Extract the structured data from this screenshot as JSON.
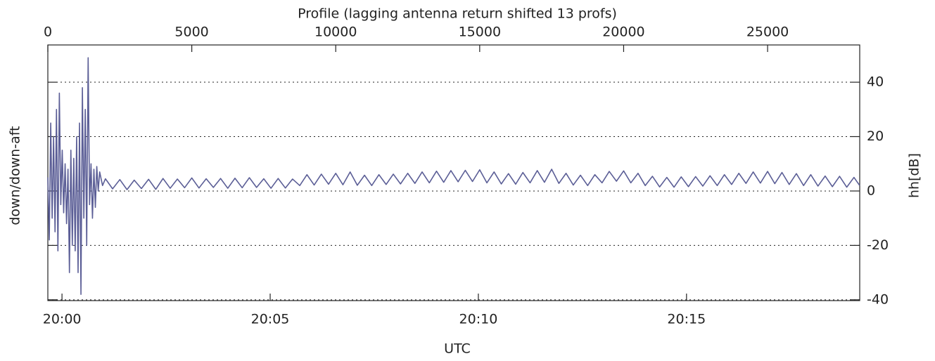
{
  "chart_data": {
    "type": "line",
    "title": "Profile (lagging antenna return shifted 13 profs)",
    "xlabel": "UTC",
    "ylabel": "hh[dB]",
    "ylabel_left": "down/down-aft",
    "xlim": [
      0,
      28200
    ],
    "xticks": [
      0,
      5000,
      10000,
      15000,
      20000,
      25000
    ],
    "x2lim": [
      -0.34,
      19.16
    ],
    "x2ticks": [
      {
        "value": 0,
        "label": "20:00"
      },
      {
        "value": 5,
        "label": "20:05"
      },
      {
        "value": 10,
        "label": "20:10"
      },
      {
        "value": 15,
        "label": "20:15"
      }
    ],
    "ylim": [
      -40.3,
      53.7
    ],
    "yticks": [
      -40,
      -20,
      0,
      20,
      40
    ],
    "grid": true,
    "x": [
      0,
      50,
      100,
      150,
      200,
      250,
      300,
      350,
      400,
      450,
      500,
      550,
      600,
      650,
      700,
      750,
      800,
      850,
      900,
      950,
      1000,
      1050,
      1100,
      1150,
      1200,
      1250,
      1300,
      1350,
      1400,
      1450,
      1500,
      1550,
      1600,
      1650,
      1700,
      1750,
      1800,
      1900,
      2000,
      2250,
      2500,
      2750,
      3000,
      3250,
      3500,
      3750,
      4000,
      4250,
      4500,
      4750,
      5000,
      5250,
      5500,
      5750,
      6000,
      6250,
      6500,
      6750,
      7000,
      7250,
      7500,
      7750,
      8000,
      8250,
      8500,
      8750,
      9000,
      9250,
      9500,
      9750,
      10000,
      10250,
      10500,
      10750,
      11000,
      11250,
      11500,
      11750,
      12000,
      12250,
      12500,
      12750,
      13000,
      13250,
      13500,
      13750,
      14000,
      14250,
      14500,
      14750,
      15000,
      15250,
      15500,
      15750,
      16000,
      16250,
      16500,
      16750,
      17000,
      17250,
      17500,
      17750,
      18000,
      18250,
      18500,
      18750,
      19000,
      19250,
      19500,
      19750,
      20000,
      20250,
      20500,
      20750,
      21000,
      21250,
      21500,
      21750,
      22000,
      22250,
      22500,
      22750,
      23000,
      23250,
      23500,
      23750,
      24000,
      24250,
      24500,
      24750,
      25000,
      25250,
      25500,
      25750,
      26000,
      26250,
      26500,
      26750,
      27000,
      27250,
      27500,
      27750,
      28000,
      28200
    ],
    "series": [
      {
        "color": "#5b5e96",
        "values": [
          5,
          -18,
          25,
          -10,
          20,
          -15,
          30,
          -22,
          36,
          -5,
          15,
          -8,
          10,
          -12,
          8,
          -30,
          15,
          -20,
          12,
          -22,
          20,
          -30,
          25,
          -38,
          38,
          -10,
          30,
          -20,
          49,
          -5,
          10,
          -10,
          8,
          -6,
          9,
          0,
          7,
          2,
          4.5,
          0.8,
          4.2,
          0.5,
          4.0,
          0.9,
          4.3,
          0.6,
          4.6,
          1.0,
          4.4,
          1.2,
          4.8,
          1.1,
          4.5,
          1.3,
          4.6,
          1.0,
          4.7,
          1.2,
          4.9,
          1.3,
          4.5,
          1.0,
          4.6,
          1.1,
          4.4,
          2.0,
          6.0,
          2.2,
          6.2,
          2.5,
          6.5,
          2.3,
          7.0,
          2.1,
          5.8,
          2.0,
          6.0,
          2.4,
          6.2,
          2.6,
          6.5,
          2.8,
          7.0,
          3.0,
          7.3,
          3.2,
          7.5,
          3.4,
          7.6,
          3.5,
          7.8,
          3.0,
          7.0,
          2.6,
          6.4,
          2.5,
          6.8,
          3.0,
          7.5,
          3.2,
          8.0,
          2.8,
          6.5,
          2.2,
          5.8,
          2.0,
          6.0,
          3.0,
          7.2,
          3.6,
          7.4,
          3.0,
          6.5,
          2.0,
          5.4,
          1.5,
          5.0,
          1.4,
          5.2,
          1.6,
          5.3,
          1.8,
          5.6,
          2.0,
          6.0,
          2.4,
          6.5,
          2.8,
          7.0,
          2.9,
          7.2,
          2.7,
          6.8,
          2.4,
          6.4,
          2.0,
          6.0,
          1.8,
          5.5,
          1.6,
          5.4,
          1.4,
          5.0,
          2.0
        ]
      }
    ]
  }
}
